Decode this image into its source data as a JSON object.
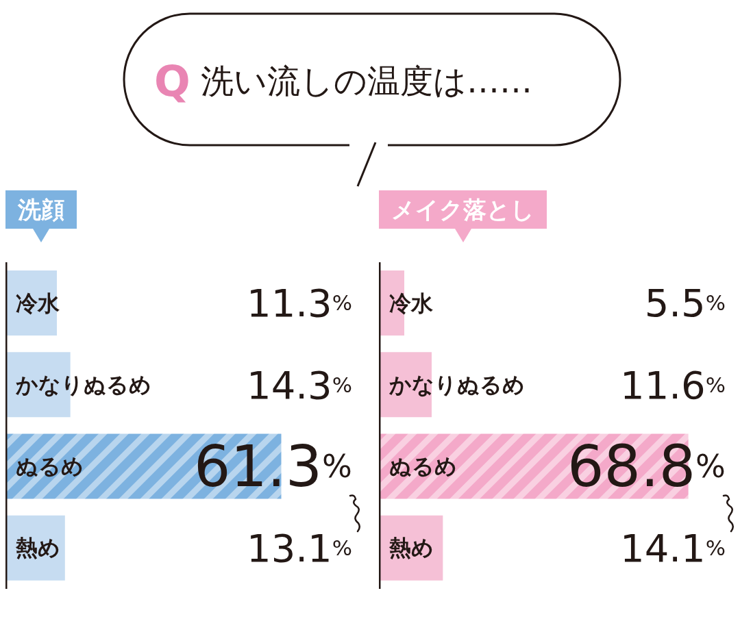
{
  "chart_data": [
    {
      "type": "bar",
      "orientation": "horizontal",
      "title": "Q 洗い流しの温度は……",
      "subtitle": "洗顔",
      "categories": [
        "冷水",
        "かなりぬるめ",
        "ぬるめ",
        "熱め"
      ],
      "values": [
        11.3,
        14.3,
        61.3,
        13.1
      ],
      "value_labels": [
        "11.3%",
        "14.3%",
        "61.3%",
        "13.1%"
      ],
      "colors": [
        "#c6dcf1",
        "#c6dcf1",
        "#7db2e0",
        "#c6dcf1"
      ]
    },
    {
      "type": "bar",
      "orientation": "horizontal",
      "subtitle": "メイク落とし",
      "categories": [
        "冷水",
        "かなりぬるめ",
        "ぬるめ",
        "熱め"
      ],
      "values": [
        5.5,
        11.6,
        68.8,
        14.1
      ],
      "value_labels": [
        "5.5%",
        "11.6%",
        "68.8%",
        "14.1%"
      ],
      "colors": [
        "#f5c0d6",
        "#f5c0d6",
        "#f4a9c9",
        "#f5c0d6"
      ]
    }
  ]
}
